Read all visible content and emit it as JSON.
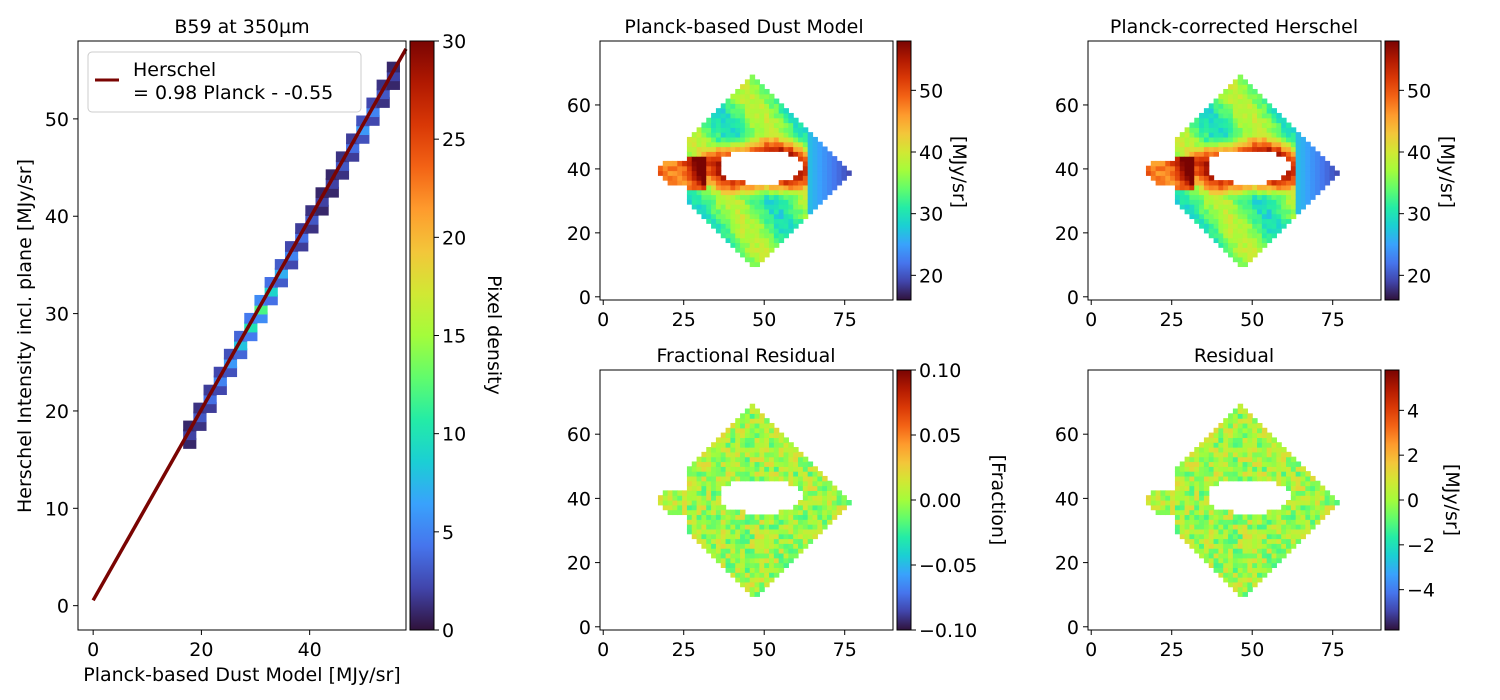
{
  "figure": {
    "colormap": "turbo",
    "cmap_stops": [
      "#30123b",
      "#4145ab",
      "#4675ed",
      "#39a2fc",
      "#1bcfd4",
      "#24eca6",
      "#61fc6c",
      "#a4fc3b",
      "#d1e834",
      "#f3c63a",
      "#fe9b2d",
      "#f36315",
      "#d93806",
      "#b11901",
      "#7a0402"
    ]
  },
  "chart_data": [
    {
      "type": "heatmap",
      "subtype": "2d-histogram-with-fit",
      "title": "B59 at 350µm",
      "xlabel": "Planck-based Dust Model [MJy/sr]",
      "ylabel": "Herschel Intensity incl. plane [MJy/sr]",
      "xlim": [
        -2.8,
        57.8
      ],
      "ylim": [
        -2.5,
        58
      ],
      "xticks": [
        0,
        20,
        40
      ],
      "yticks": [
        0,
        10,
        20,
        30,
        40,
        50
      ],
      "grid": false,
      "legend": {
        "position": "top-left",
        "entries": [
          {
            "line1": "Herschel",
            "line2": "= 0.98 Planck - -0.55",
            "color": "#7a0402"
          }
        ]
      },
      "fit": {
        "slope": 0.98,
        "intercept": 0.55,
        "x": [
          0,
          57.8
        ],
        "color": "#7a0402"
      },
      "density_band": {
        "x_range": [
          17,
          56.5
        ],
        "values": [
          2,
          3,
          4,
          5,
          6,
          8,
          10,
          12,
          9,
          7,
          5,
          4,
          3,
          2,
          2,
          3,
          4,
          6,
          5,
          3,
          2
        ]
      },
      "colorbar": {
        "label": "Pixel density",
        "min": 0,
        "max": 30,
        "ticks": [
          0,
          5,
          10,
          15,
          20,
          25,
          30
        ]
      }
    },
    {
      "type": "heatmap",
      "title": "Planck-based Dust Model",
      "kind": "intensity",
      "xlim": [
        -1,
        90
      ],
      "ylim": [
        -1,
        80
      ],
      "xticks": [
        0,
        25,
        50,
        75
      ],
      "yticks": [
        0,
        20,
        40,
        60
      ],
      "grid": false,
      "colorbar": {
        "label": "[MJy/sr]",
        "min": 16,
        "max": 58,
        "ticks": [
          20,
          30,
          40,
          50
        ]
      }
    },
    {
      "type": "heatmap",
      "title": "Planck-corrected Herschel",
      "kind": "intensity",
      "xlim": [
        -1,
        90
      ],
      "ylim": [
        -1,
        80
      ],
      "xticks": [
        0,
        25,
        50,
        75
      ],
      "yticks": [
        0,
        20,
        40,
        60
      ],
      "grid": false,
      "colorbar": {
        "label": "[MJy/sr]",
        "min": 16,
        "max": 58,
        "ticks": [
          20,
          30,
          40,
          50
        ]
      }
    },
    {
      "type": "heatmap",
      "title": "Fractional Residual",
      "kind": "fraction",
      "xlim": [
        -1,
        90
      ],
      "ylim": [
        -1,
        80
      ],
      "xticks": [
        0,
        25,
        50,
        75
      ],
      "yticks": [
        0,
        20,
        40,
        60
      ],
      "grid": false,
      "colorbar": {
        "label": "[Fraction]",
        "min": -0.1,
        "max": 0.1,
        "ticks": [
          "−0.10",
          "−0.05",
          "0.00",
          "0.05",
          "0.10"
        ]
      }
    },
    {
      "type": "heatmap",
      "title": "Residual",
      "kind": "residual",
      "xlim": [
        -1,
        90
      ],
      "ylim": [
        -1,
        80
      ],
      "xticks": [
        0,
        25,
        50,
        75
      ],
      "yticks": [
        0,
        20,
        40,
        60
      ],
      "grid": false,
      "colorbar": {
        "label": "[MJy/sr]",
        "min": -5.8,
        "max": 5.8,
        "ticks": [
          "−4",
          "−2",
          "0",
          "2",
          "4"
        ]
      }
    }
  ]
}
